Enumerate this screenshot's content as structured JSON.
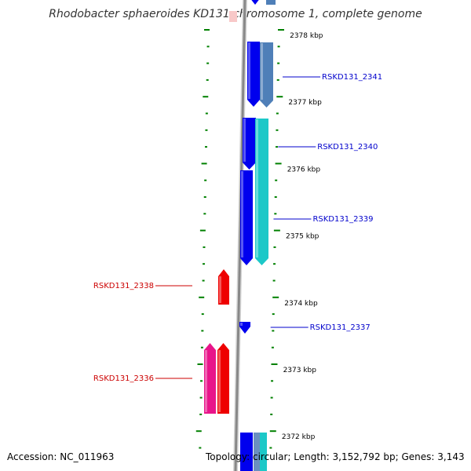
{
  "title": "Rhodobacter sphaeroides KD131 chromosome 1, complete genome",
  "accession": "Accession: NC_011963",
  "topology": "Topology: circular; Length: 3,152,792 bp; Genes: 3,143",
  "colors": {
    "blue": "#0000ee",
    "steel": "#4f7fb8",
    "cyan": "#1cc8c8",
    "red": "#ee0000",
    "magenta": "#e8158a",
    "label_blue": "#0000cc",
    "label_red": "#cc0000",
    "tick_green": "#008000",
    "backbone": "#888888"
  },
  "kbp_labels": [
    {
      "kbp": 2378,
      "text": "2378 kbp"
    },
    {
      "kbp": 2377,
      "text": "2377 kbp"
    },
    {
      "kbp": 2376,
      "text": "2376 kbp"
    },
    {
      "kbp": 2375,
      "text": "2375 kbp"
    },
    {
      "kbp": 2374,
      "text": "2374 kbp"
    },
    {
      "kbp": 2373,
      "text": "2373 kbp"
    },
    {
      "kbp": 2372,
      "text": "2372 kbp"
    }
  ],
  "genes": [
    {
      "label": "RSKD131_2341",
      "side": "right",
      "color": "steel"
    },
    {
      "label": "RSKD131_2340",
      "side": "right",
      "color": "cyan"
    },
    {
      "label": "RSKD131_2339",
      "side": "right",
      "color": "blue"
    },
    {
      "label": "RSKD131_2338",
      "side": "left",
      "color": "red"
    },
    {
      "label": "RSKD131_2337",
      "side": "right",
      "color": "blue"
    },
    {
      "label": "RSKD131_2336",
      "side": "left",
      "color": "magenta"
    }
  ]
}
